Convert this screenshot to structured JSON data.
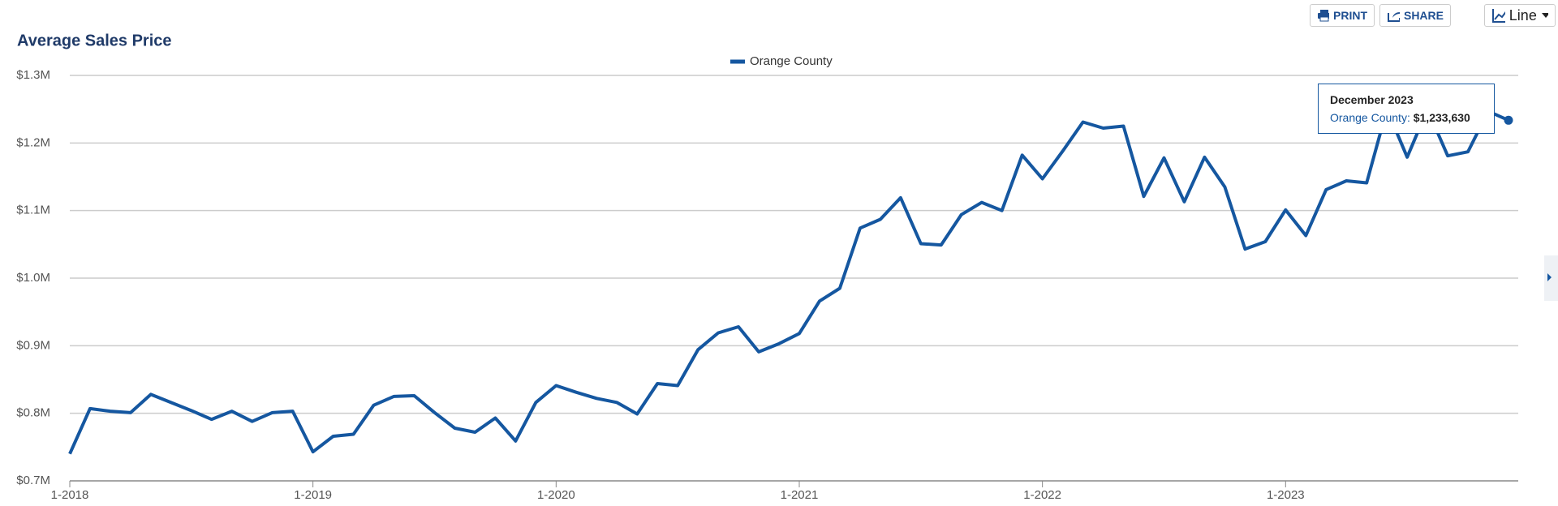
{
  "toolbar": {
    "print": "PRINT",
    "share": "SHARE",
    "chart_type": "Line"
  },
  "chart_data": {
    "type": "line",
    "title": "Average Sales Price",
    "categories": [
      "1-2018",
      null,
      null,
      null,
      null,
      null,
      null,
      null,
      null,
      null,
      null,
      null,
      "1-2019",
      null,
      null,
      null,
      null,
      null,
      null,
      null,
      null,
      null,
      null,
      null,
      "1-2020",
      null,
      null,
      null,
      null,
      null,
      null,
      null,
      null,
      null,
      null,
      null,
      "1-2021",
      null,
      null,
      null,
      null,
      null,
      null,
      null,
      null,
      null,
      null,
      null,
      "1-2022",
      null,
      null,
      null,
      null,
      null,
      null,
      null,
      null,
      null,
      null,
      null,
      "1-2023",
      null,
      null,
      null,
      null,
      null,
      null,
      null,
      null,
      null,
      null,
      null
    ],
    "series": [
      {
        "name": "Orange County",
        "color": "#1557a0",
        "values": [
          740000,
          807000,
          803000,
          801000,
          828000,
          816000,
          804000,
          791000,
          803000,
          788000,
          801000,
          803000,
          743000,
          766000,
          769000,
          812000,
          825000,
          826000,
          801000,
          778000,
          772000,
          793000,
          759000,
          816000,
          841000,
          831000,
          822000,
          816000,
          799000,
          844000,
          841000,
          894000,
          919000,
          928000,
          891000,
          903000,
          918000,
          966000,
          985000,
          1074000,
          1087000,
          1119000,
          1051000,
          1049000,
          1094000,
          1112000,
          1100000,
          1182000,
          1147000,
          1188000,
          1231000,
          1222000,
          1225000,
          1121000,
          1178000,
          1113000,
          1179000,
          1135000,
          1043000,
          1054000,
          1101000,
          1063000,
          1131000,
          1144000,
          1141000,
          1250000,
          1179000,
          1250000,
          1181000,
          1187000,
          1247000,
          1233630
        ]
      }
    ],
    "ylim": [
      700000,
      1300000
    ],
    "yticks": [
      {
        "value": 700000,
        "label": "$0.7M"
      },
      {
        "value": 800000,
        "label": "$0.8M"
      },
      {
        "value": 900000,
        "label": "$0.9M"
      },
      {
        "value": 1000000,
        "label": "$1.0M"
      },
      {
        "value": 1100000,
        "label": "$1.1M"
      },
      {
        "value": 1200000,
        "label": "$1.2M"
      },
      {
        "value": 1300000,
        "label": "$1.3M"
      }
    ],
    "grid": true,
    "tooltip": {
      "title": "December 2023",
      "series_label": "Orange County:",
      "value": 1233630,
      "value_label": "$1,233,630"
    }
  }
}
